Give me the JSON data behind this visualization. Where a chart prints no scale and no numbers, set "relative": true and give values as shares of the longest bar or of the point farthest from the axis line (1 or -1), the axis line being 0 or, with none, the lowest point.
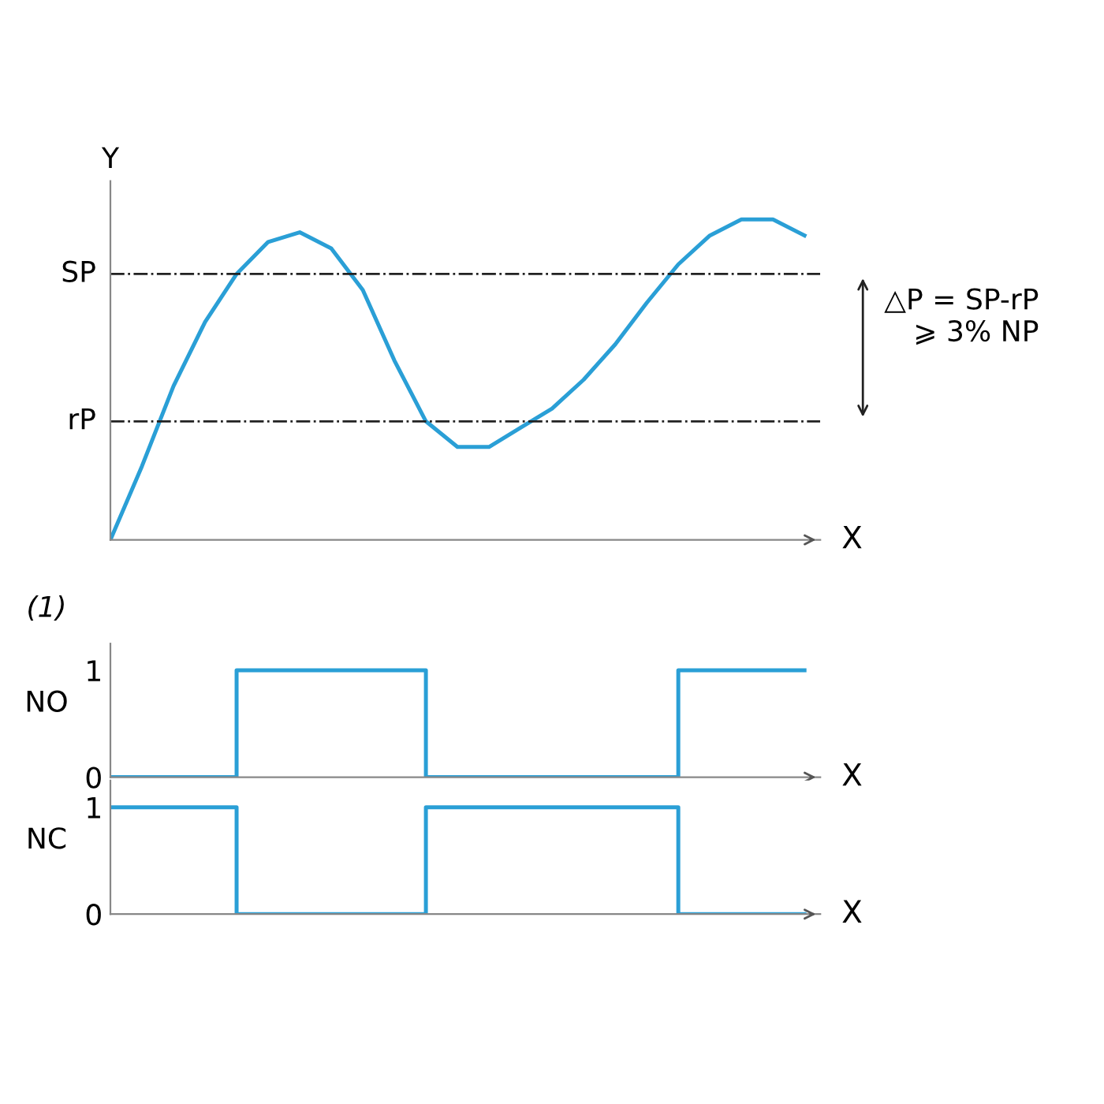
{
  "chart_data": [
    {
      "type": "line",
      "relative": true,
      "ylabel": "Y",
      "xlabel": "X",
      "categories": [
        null,
        null,
        null,
        null,
        null,
        null,
        null,
        null,
        null,
        null,
        null,
        null,
        null,
        null,
        null,
        null,
        null,
        null,
        null,
        null,
        null,
        null,
        null
      ],
      "series": [
        {
          "color": "#2a9fd6",
          "values": [
            0,
            0.23,
            0.48,
            0.68,
            0.83,
            0.93,
            0.96,
            0.91,
            0.78,
            0.56,
            0.37,
            0.29,
            0.29,
            0.35,
            0.41,
            0.5,
            0.61,
            0.74,
            0.86,
            0.95,
            1.0,
            1.0,
            0.95
          ]
        }
      ],
      "ref_lines": [
        {
          "axis": "y",
          "value": 0.83,
          "label": "SP",
          "color": "#222222",
          "line_style": "dashdot"
        },
        {
          "axis": "y",
          "value": 0.37,
          "label": "rP",
          "color": "#222222",
          "line_style": "dashdot"
        }
      ],
      "annotations": [
        "△P = SP-rP\n⩾ 3% NP"
      ]
    },
    {
      "type": "step",
      "ylabel": "NO",
      "xlabel": "X",
      "ylim": [
        0,
        1.25
      ],
      "yticks": [
        0,
        1
      ],
      "categories": [
        null,
        null,
        null,
        null,
        null,
        null,
        null,
        null,
        null,
        null,
        null,
        null,
        null,
        null,
        null,
        null,
        null,
        null,
        null,
        null,
        null,
        null,
        null
      ],
      "series": [
        {
          "color": "#2a9fd6",
          "values": [
            0,
            0,
            0,
            0,
            1,
            1,
            1,
            1,
            1,
            1,
            0,
            0,
            0,
            0,
            0,
            0,
            0,
            0,
            1,
            1,
            1,
            1,
            1
          ]
        }
      ],
      "annotations": [
        "(1)"
      ]
    },
    {
      "type": "step",
      "ylabel": "NC",
      "xlabel": "X",
      "ylim": [
        0,
        1.25
      ],
      "yticks": [
        0,
        1
      ],
      "categories": [
        null,
        null,
        null,
        null,
        null,
        null,
        null,
        null,
        null,
        null,
        null,
        null,
        null,
        null,
        null,
        null,
        null,
        null,
        null,
        null,
        null,
        null,
        null
      ],
      "series": [
        {
          "color": "#2a9fd6",
          "values": [
            1,
            1,
            1,
            1,
            0,
            0,
            0,
            0,
            0,
            0,
            1,
            1,
            1,
            1,
            1,
            1,
            1,
            1,
            0,
            0,
            0,
            0,
            0
          ]
        }
      ]
    }
  ]
}
